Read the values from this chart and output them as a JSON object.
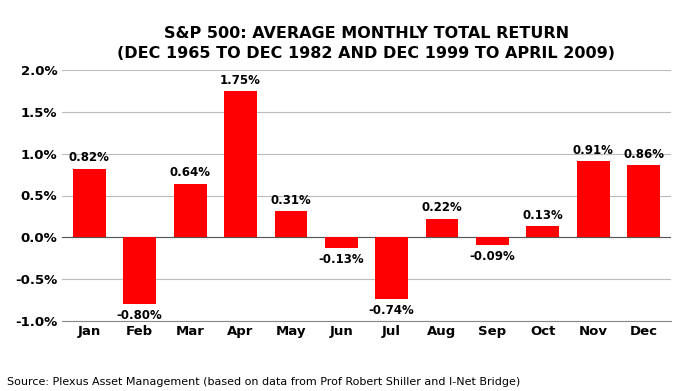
{
  "title_line1": "S&P 500: AVERAGE MONTHLY TOTAL RETURN",
  "title_line2": "(DEC 1965 TO DEC 1982 AND DEC 1999 TO APRIL 2009)",
  "months": [
    "Jan",
    "Feb",
    "Mar",
    "Apr",
    "May",
    "Jun",
    "Jul",
    "Aug",
    "Sep",
    "Oct",
    "Nov",
    "Dec"
  ],
  "values": [
    0.82,
    -0.8,
    0.64,
    1.75,
    0.31,
    -0.13,
    -0.74,
    0.22,
    -0.09,
    0.13,
    0.91,
    0.86
  ],
  "labels": [
    "0.82%",
    "-0.80%",
    "0.64%",
    "1.75%",
    "0.31%",
    "-0.13%",
    "-0.74%",
    "0.22%",
    "-0.09%",
    "0.13%",
    "0.91%",
    "0.86%"
  ],
  "bar_color": "#FF0000",
  "ylim": [
    -1.0,
    2.0
  ],
  "yticks": [
    -1.0,
    -0.5,
    0.0,
    0.5,
    1.0,
    1.5,
    2.0
  ],
  "ytick_labels": [
    "-1.0%",
    "-0.5%",
    "0.0%",
    "0.5%",
    "1.0%",
    "1.5%",
    "2.0%"
  ],
  "source_text": "Source: Plexus Asset Management (based on data from Prof Robert Shiller and I-Net Bridge)",
  "title_fontsize": 11.5,
  "label_fontsize": 8.5,
  "tick_fontsize": 9.5,
  "source_fontsize": 8.0,
  "background_color": "#FFFFFF",
  "grid_color": "#BBBBBB"
}
